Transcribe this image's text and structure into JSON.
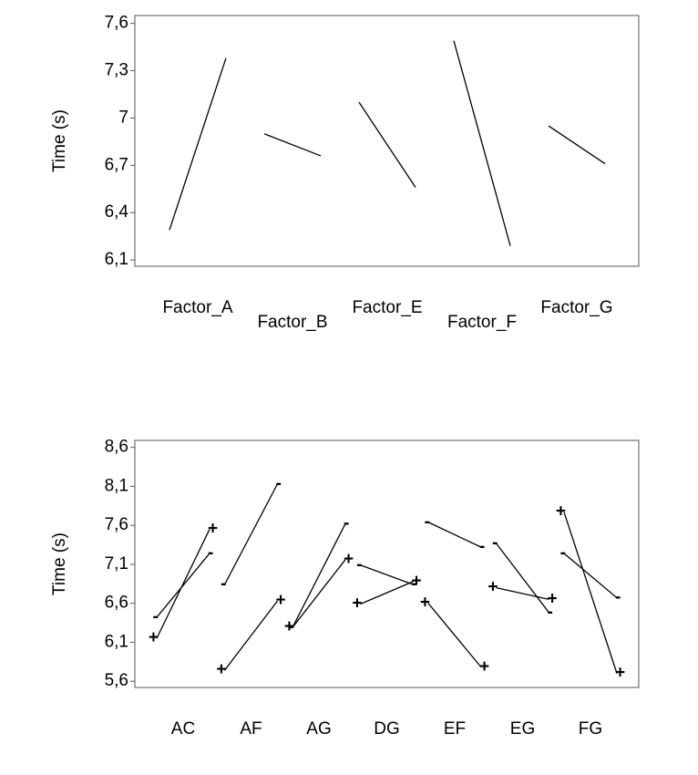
{
  "chart_data": [
    {
      "type": "line",
      "ylabel": "Time (s)",
      "categories": [
        "Factor_A",
        "Factor_B",
        "Factor_E",
        "Factor_F",
        "Factor_G"
      ],
      "values": [
        [
          6.29,
          7.38
        ],
        [
          6.9,
          6.76
        ],
        [
          7.1,
          6.56
        ],
        [
          7.49,
          6.19
        ],
        [
          6.95,
          6.71
        ]
      ],
      "color": "#000000",
      "ylim": [
        6.06,
        7.65
      ],
      "yticks": [
        {
          "value": 6.1,
          "label": "6,1"
        },
        {
          "value": 6.4,
          "label": "6,4"
        },
        {
          "value": 6.7,
          "label": "6,7"
        },
        7,
        {
          "value": 7.3,
          "label": "7,3"
        },
        {
          "value": 7.6,
          "label": "7,6"
        }
      ]
    },
    {
      "type": "line",
      "ylabel": "Time (s)",
      "categories": [
        "AC",
        "AF",
        "AG",
        "DG",
        "EF",
        "EG",
        "FG"
      ],
      "series": [
        {
          "name": "-",
          "color": "#000000",
          "values": [
            [
              6.42,
              7.24
            ],
            [
              6.84,
              8.13
            ],
            [
              6.29,
              7.62
            ],
            [
              7.09,
              6.84
            ],
            [
              7.64,
              7.32
            ],
            [
              7.37,
              6.48
            ],
            [
              7.24,
              6.67
            ]
          ]
        },
        {
          "name": "+",
          "color": "#000000",
          "values": [
            [
              6.15,
              7.55
            ],
            [
              5.74,
              6.63
            ],
            [
              6.29,
              7.16
            ],
            [
              6.59,
              6.88
            ],
            [
              6.6,
              5.78
            ],
            [
              6.8,
              6.65
            ],
            [
              7.77,
              5.7
            ]
          ]
        }
      ],
      "ylim": [
        5.52,
        8.69
      ],
      "yticks": [
        {
          "value": 5.6,
          "label": "5,6"
        },
        {
          "value": 6.1,
          "label": "6,1"
        },
        {
          "value": 6.6,
          "label": "6,6"
        },
        {
          "value": 7.1,
          "label": "7,1"
        },
        {
          "value": 7.6,
          "label": "7,6"
        },
        {
          "value": 8.1,
          "label": "8,1"
        },
        {
          "value": 8.6,
          "label": "8,6"
        }
      ]
    }
  ]
}
